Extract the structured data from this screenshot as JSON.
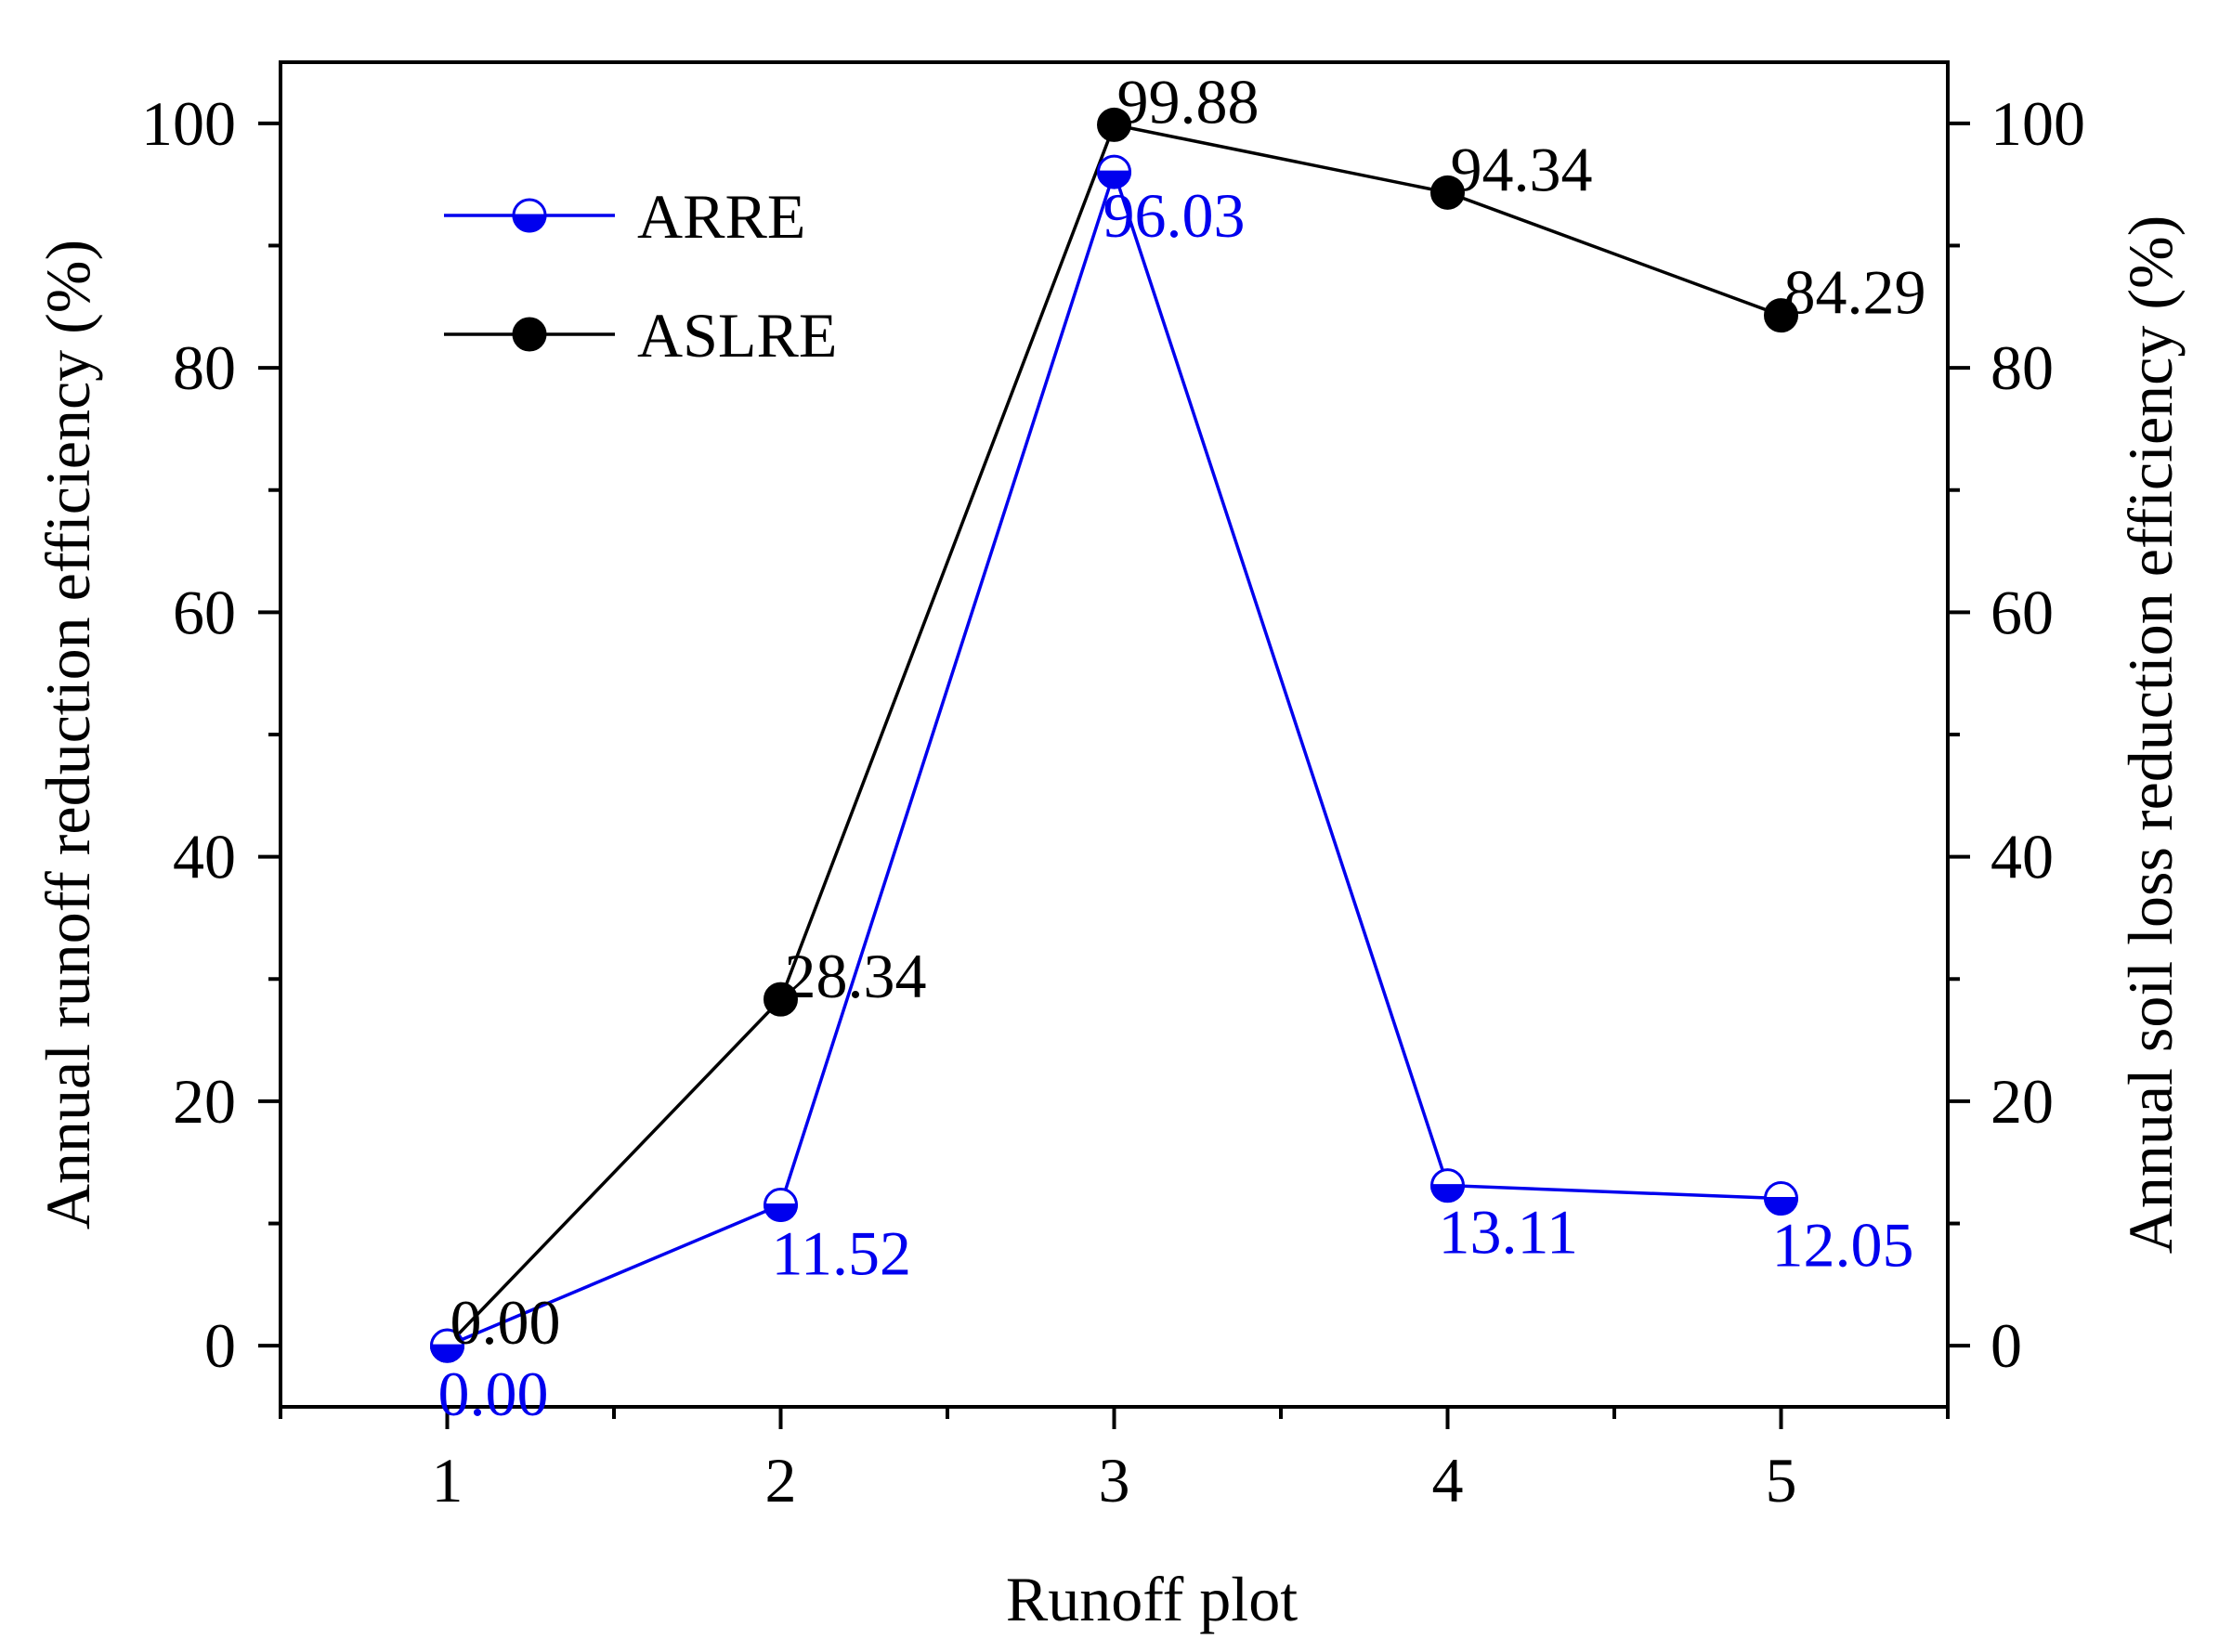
{
  "chart_data": {
    "type": "line",
    "xlabel": "Runoff plot",
    "ylabel_left": "Annual runoff reduction efficiency (%)",
    "ylabel_right": "Annual soil loss reduction efficiency (%)",
    "x": [
      1,
      2,
      3,
      4,
      5
    ],
    "x_ticks": [
      "1",
      "2",
      "3",
      "4",
      "5"
    ],
    "xlim": [
      0.5,
      5.5
    ],
    "ylim": [
      -5,
      105
    ],
    "y_ticks": [
      "0",
      "20",
      "40",
      "60",
      "80",
      "100"
    ],
    "grid": false,
    "legend_position": "top-left",
    "series": [
      {
        "name": "ARRE",
        "color": "#0000ee",
        "marker": "half-filled-circle",
        "values": [
          0.0,
          11.52,
          96.03,
          13.11,
          12.05
        ],
        "labels": [
          "0.00",
          "11.52",
          "96.03",
          "13.11",
          "12.05"
        ]
      },
      {
        "name": "ASLRE",
        "color": "#000000",
        "marker": "filled-circle",
        "values": [
          0.0,
          28.34,
          99.88,
          94.34,
          84.29
        ],
        "labels": [
          "0.00",
          "28.34",
          "99.88",
          "94.34",
          "84.29"
        ]
      }
    ]
  }
}
